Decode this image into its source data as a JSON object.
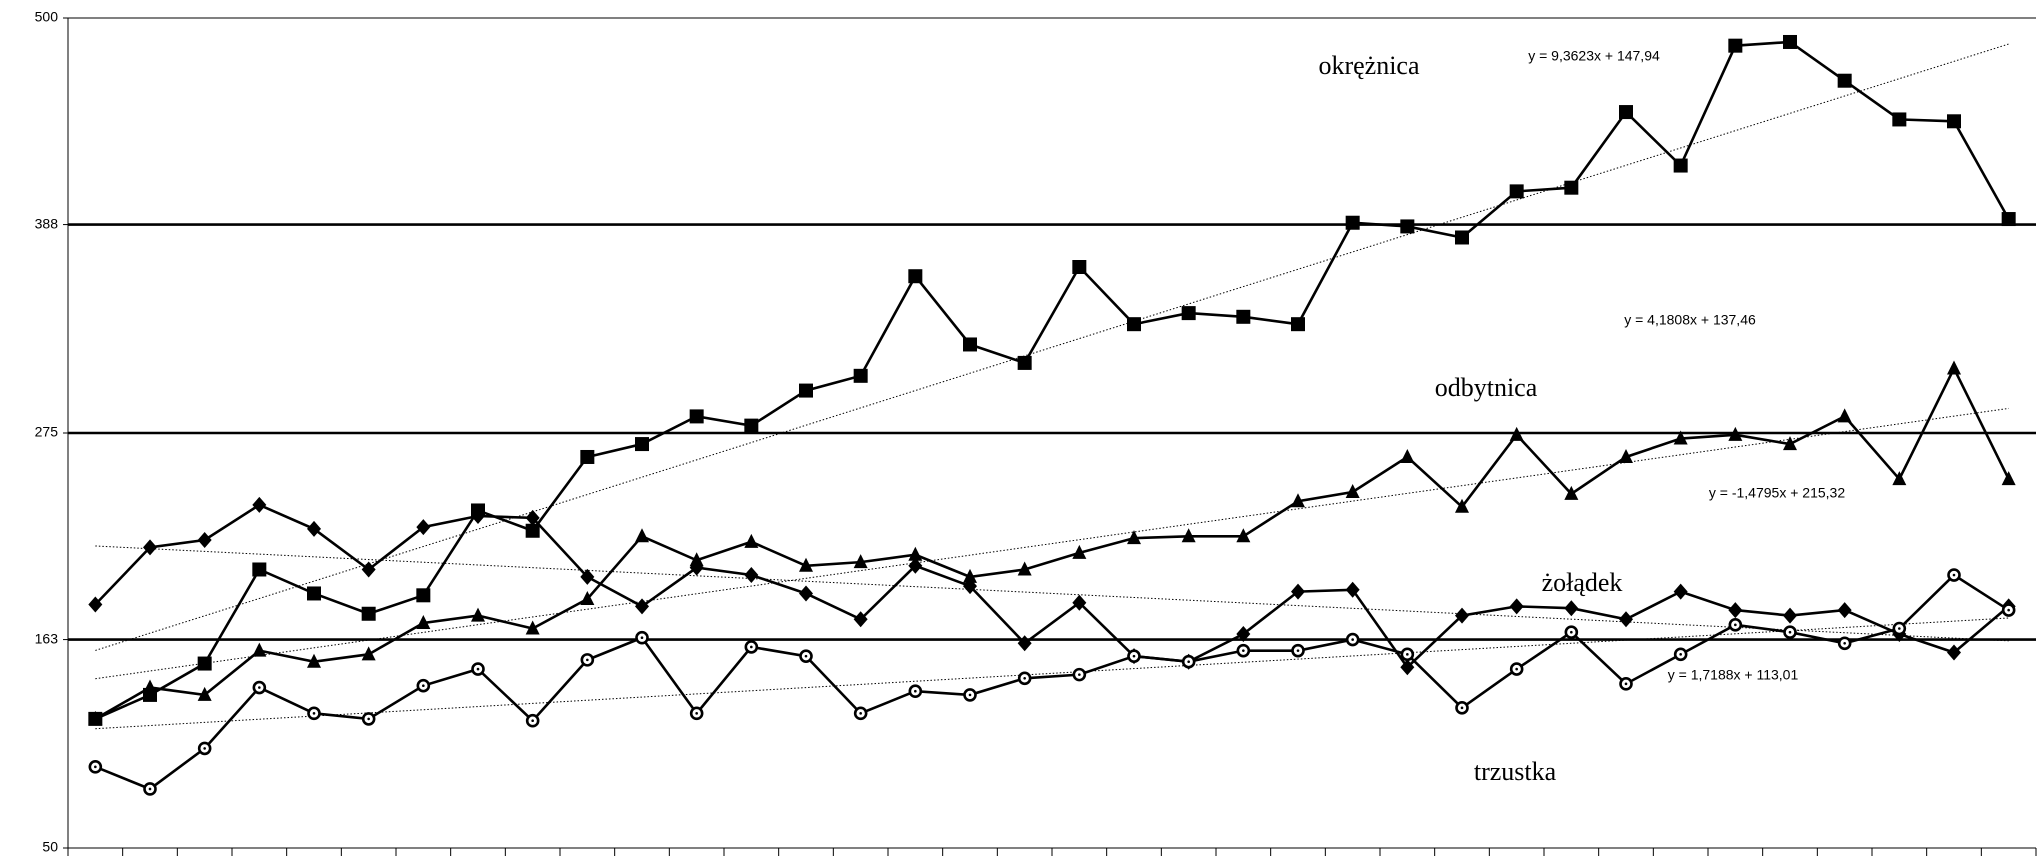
{
  "chart_data": {
    "type": "line",
    "categories": [
      null,
      null,
      null,
      null,
      null,
      null,
      null,
      null,
      null,
      null,
      null,
      null,
      null,
      null,
      null,
      null,
      null,
      null,
      null,
      null,
      null,
      null,
      null,
      null,
      null,
      null,
      null,
      null,
      null,
      null,
      null,
      null,
      null,
      null,
      null,
      null
    ],
    "ylim": [
      50,
      500
    ],
    "yticks": [
      50,
      163,
      275,
      388,
      500
    ],
    "grid": true,
    "trendlines": true,
    "series": [
      {
        "name": "okrężnica",
        "color": "#000000",
        "marker": "square",
        "values": [
          120,
          133,
          150,
          201,
          188,
          177,
          187,
          233,
          222,
          262,
          269,
          284,
          279,
          298,
          306,
          360,
          323,
          313,
          365,
          334,
          340,
          338,
          334,
          389,
          387,
          381,
          406,
          408,
          449,
          420,
          485,
          487,
          466,
          445,
          444,
          391
        ]
      },
      {
        "name": "odbytnica",
        "color": "#000000",
        "marker": "triangle",
        "values": [
          120,
          137,
          133,
          157,
          151,
          155,
          172,
          176,
          169,
          185,
          219,
          206,
          216,
          203,
          205,
          209,
          197,
          201,
          210,
          218,
          219,
          219,
          238,
          243,
          262,
          235,
          274,
          242,
          262,
          272,
          274,
          269,
          284,
          250,
          310,
          250
        ]
      },
      {
        "name": "żołądek",
        "color": "#000000",
        "marker": "diamond",
        "values": [
          182,
          213,
          217,
          236,
          223,
          201,
          224,
          230,
          229,
          197,
          181,
          202,
          198,
          188,
          174,
          203,
          192,
          161,
          183,
          154,
          151,
          166,
          189,
          190,
          148,
          176,
          181,
          180,
          174,
          189,
          179,
          176,
          179,
          166,
          156,
          181
        ]
      },
      {
        "name": "trzustka",
        "color": "#000000",
        "marker": "circle",
        "values": [
          94,
          82,
          104,
          137,
          123,
          120,
          138,
          147,
          119,
          152,
          164,
          123,
          159,
          154,
          123,
          135,
          133,
          142,
          144,
          154,
          151,
          157,
          157,
          163,
          155,
          126,
          147,
          167,
          139,
          155,
          171,
          167,
          161,
          169,
          198,
          179
        ]
      }
    ],
    "annotations": [
      "y = 9,3623x + 147,94",
      "y = 4,1808x + 137,46",
      "y = -1,4795x + 215,32",
      "y = 1,7188x + 113,01"
    ]
  }
}
